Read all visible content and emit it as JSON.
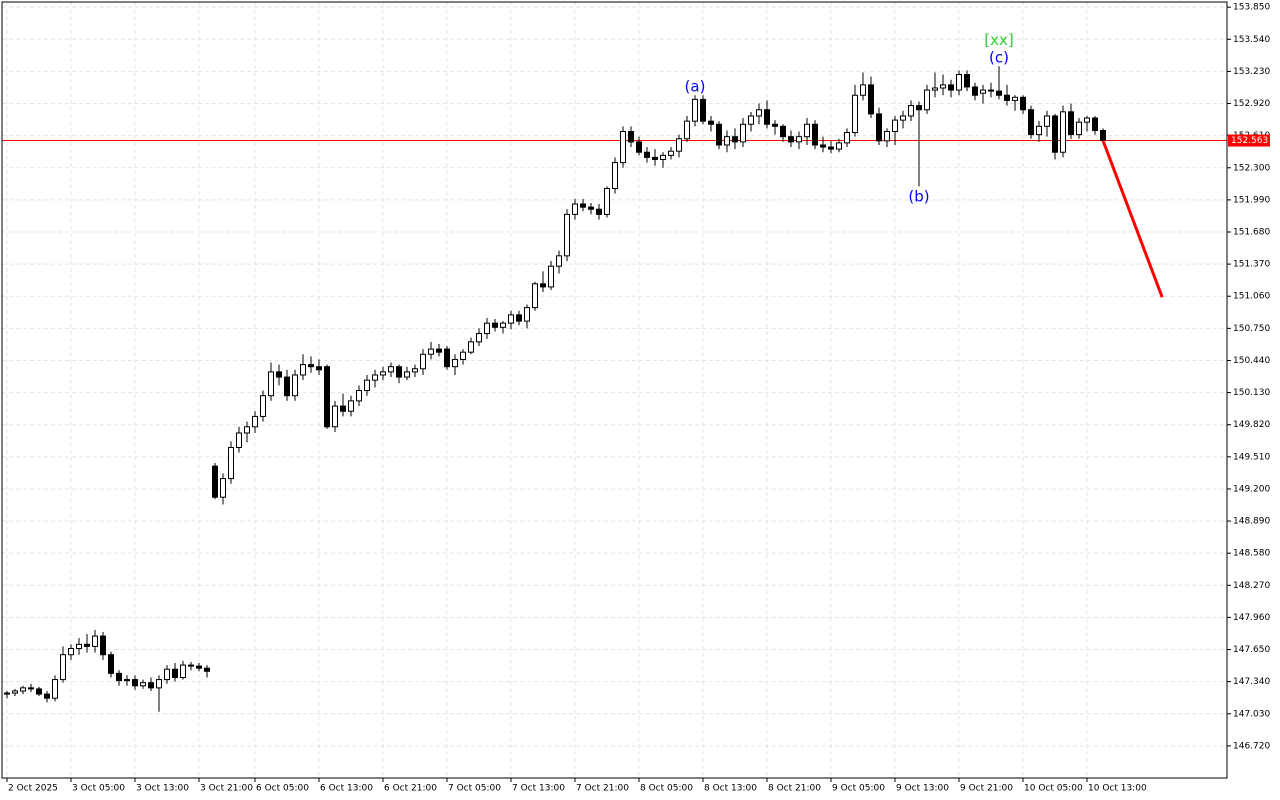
{
  "chart_data": {
    "type": "candlestick",
    "categories": [
      "2 Oct 2025",
      null,
      null,
      null,
      null,
      null,
      null,
      null,
      "3 Oct 05:00",
      null,
      null,
      null,
      null,
      null,
      null,
      null,
      "3 Oct 13:00",
      null,
      null,
      null,
      null,
      null,
      null,
      null,
      "3 Oct 21:00",
      null,
      null,
      null,
      null,
      null,
      null,
      "6 Oct 05:00",
      null,
      null,
      null,
      null,
      null,
      null,
      null,
      "6 Oct 13:00",
      null,
      null,
      null,
      null,
      null,
      null,
      null,
      "6 Oct 21:00",
      null,
      null,
      null,
      null,
      null,
      null,
      null,
      "7 Oct 05:00",
      null,
      null,
      null,
      null,
      null,
      null,
      null,
      "7 Oct 13:00",
      null,
      null,
      null,
      null,
      null,
      null,
      null,
      "7 Oct 21:00",
      null,
      null,
      null,
      null,
      null,
      null,
      null,
      "8 Oct 05:00",
      null,
      null,
      null,
      null,
      null,
      null,
      null,
      "8 Oct 13:00",
      null,
      null,
      null,
      null,
      null,
      null,
      null,
      "8 Oct 21:00",
      null,
      null,
      null,
      null,
      null,
      null,
      null,
      "9 Oct 05:00",
      null,
      null,
      null,
      null,
      null,
      null,
      null,
      "9 Oct 13:00",
      null,
      null,
      null,
      null,
      null,
      null,
      null,
      "9 Oct 21:00",
      null,
      null,
      null,
      null,
      null,
      null,
      null,
      "10 Oct 05:00",
      null,
      null,
      null,
      null,
      null,
      null,
      null,
      "10 Oct 13:00",
      null,
      null
    ],
    "open": [
      147.22,
      147.23,
      147.25,
      147.28,
      147.27,
      147.22,
      147.18,
      147.36,
      147.6,
      147.66,
      147.7,
      147.68,
      147.78,
      147.6,
      147.42,
      147.35,
      147.36,
      147.3,
      147.33,
      147.28,
      147.36,
      147.46,
      147.38,
      147.5,
      147.49,
      147.47,
      149.42,
      149.12,
      149.3,
      149.6,
      149.74,
      149.8,
      149.9,
      150.1,
      150.33,
      150.28,
      150.1,
      150.3,
      150.4,
      150.38,
      150.38,
      149.8,
      150.0,
      149.95,
      150.05,
      150.15,
      150.25,
      150.3,
      150.33,
      150.38,
      150.28,
      150.33,
      150.36,
      150.5,
      150.55,
      150.55,
      150.38,
      150.45,
      150.52,
      150.62,
      150.7,
      150.8,
      150.76,
      150.8,
      150.88,
      150.82,
      150.95,
      151.18,
      151.15,
      151.35,
      151.45,
      151.85,
      151.95,
      151.92,
      151.9,
      151.85,
      152.1,
      152.35,
      152.65,
      152.55,
      152.45,
      152.4,
      152.38,
      152.42,
      152.46,
      152.58,
      152.75,
      152.96,
      152.75,
      152.72,
      152.52,
      152.6,
      152.55,
      152.72,
      152.8,
      152.86,
      152.72,
      152.7,
      152.6,
      152.55,
      152.6,
      152.72,
      152.52,
      152.5,
      152.48,
      152.54,
      152.64,
      153.0,
      153.1,
      152.82,
      152.56,
      152.65,
      152.76,
      152.8,
      152.9,
      152.86,
      153.05,
      153.07,
      153.1,
      153.05,
      153.2,
      153.08,
      153.02,
      153.05,
      153.04,
      153.0,
      152.95,
      152.98,
      152.86,
      152.62,
      152.7,
      152.8,
      152.45,
      152.84,
      152.62,
      152.74,
      152.78,
      152.66
    ],
    "high": [
      147.25,
      147.27,
      147.3,
      147.32,
      147.29,
      147.25,
      147.4,
      147.68,
      147.7,
      147.76,
      147.8,
      147.84,
      147.82,
      147.63,
      147.45,
      147.4,
      147.4,
      147.36,
      147.38,
      147.4,
      147.5,
      147.52,
      147.54,
      147.53,
      147.52,
      147.5,
      149.45,
      149.35,
      149.66,
      149.8,
      149.85,
      149.95,
      150.15,
      150.42,
      150.4,
      150.35,
      150.35,
      150.5,
      150.48,
      150.45,
      150.4,
      150.05,
      150.12,
      150.1,
      150.2,
      150.3,
      150.35,
      150.38,
      150.42,
      150.4,
      150.38,
      150.4,
      150.55,
      150.62,
      150.6,
      150.58,
      150.5,
      150.55,
      150.66,
      150.75,
      150.85,
      150.84,
      150.82,
      150.92,
      150.92,
      150.98,
      151.2,
      151.3,
      151.4,
      151.5,
      151.9,
      152.0,
      152.0,
      151.96,
      151.95,
      152.12,
      152.4,
      152.7,
      152.7,
      152.6,
      152.5,
      152.48,
      152.45,
      152.5,
      152.62,
      152.8,
      153.0,
      153.0,
      152.8,
      152.75,
      152.66,
      152.68,
      152.78,
      152.84,
      152.92,
      152.95,
      152.76,
      152.72,
      152.66,
      152.65,
      152.78,
      152.76,
      152.6,
      152.56,
      152.58,
      152.68,
      153.1,
      153.22,
      153.18,
      152.88,
      152.68,
      152.8,
      152.85,
      152.95,
      152.94,
      153.1,
      153.22,
      153.2,
      153.15,
      153.24,
      153.24,
      153.12,
      153.1,
      153.12,
      153.28,
      153.1,
      153.0,
      153.0,
      152.9,
      152.75,
      152.85,
      152.82,
      152.9,
      152.92,
      152.78,
      152.8,
      152.8,
      152.68
    ],
    "low": [
      147.18,
      147.2,
      147.22,
      147.24,
      147.2,
      147.14,
      147.15,
      147.33,
      147.55,
      147.6,
      147.62,
      147.62,
      147.55,
      147.38,
      147.3,
      147.3,
      147.26,
      147.27,
      147.25,
      147.05,
      147.32,
      147.34,
      147.36,
      147.45,
      147.44,
      147.38,
      149.1,
      149.05,
      149.25,
      149.55,
      149.65,
      149.74,
      149.85,
      150.05,
      150.2,
      150.05,
      150.05,
      150.25,
      150.32,
      150.3,
      149.78,
      149.75,
      149.9,
      149.9,
      150.0,
      150.1,
      150.18,
      150.25,
      150.28,
      150.22,
      150.25,
      150.28,
      150.3,
      150.45,
      150.48,
      150.35,
      150.3,
      150.4,
      150.5,
      150.58,
      150.65,
      150.72,
      150.7,
      150.74,
      150.78,
      150.75,
      150.92,
      151.1,
      151.12,
      151.28,
      151.4,
      151.8,
      151.88,
      151.85,
      151.8,
      151.82,
      152.05,
      152.3,
      152.5,
      152.42,
      152.35,
      152.32,
      152.3,
      152.38,
      152.4,
      152.55,
      152.7,
      152.72,
      152.65,
      152.48,
      152.45,
      152.48,
      152.5,
      152.65,
      152.72,
      152.68,
      152.62,
      152.55,
      152.5,
      152.48,
      152.52,
      152.48,
      152.45,
      152.44,
      152.45,
      152.5,
      152.6,
      152.95,
      152.78,
      152.52,
      152.5,
      152.52,
      152.68,
      152.75,
      152.12,
      152.82,
      152.98,
      153.0,
      152.98,
      153.0,
      153.04,
      152.95,
      152.92,
      152.98,
      152.96,
      152.9,
      152.85,
      152.82,
      152.58,
      152.55,
      152.6,
      152.38,
      152.4,
      152.58,
      152.58,
      152.65,
      152.62,
      152.55
    ],
    "close": [
      147.23,
      147.25,
      147.28,
      147.27,
      147.22,
      147.18,
      147.36,
      147.6,
      147.66,
      147.7,
      147.68,
      147.78,
      147.6,
      147.42,
      147.35,
      147.36,
      147.3,
      147.33,
      147.28,
      147.36,
      147.46,
      147.38,
      147.5,
      147.49,
      147.47,
      147.44,
      149.12,
      149.3,
      149.6,
      149.74,
      149.8,
      149.9,
      150.1,
      150.33,
      150.28,
      150.1,
      150.3,
      150.4,
      150.38,
      150.35,
      149.8,
      150.0,
      149.95,
      150.05,
      150.15,
      150.25,
      150.3,
      150.33,
      150.38,
      150.28,
      150.33,
      150.36,
      150.5,
      150.55,
      150.52,
      150.38,
      150.45,
      150.52,
      150.62,
      150.7,
      150.8,
      150.76,
      150.8,
      150.88,
      150.82,
      150.95,
      151.18,
      151.15,
      151.35,
      151.45,
      151.85,
      151.95,
      151.92,
      151.9,
      151.85,
      152.1,
      152.35,
      152.65,
      152.55,
      152.45,
      152.4,
      152.38,
      152.42,
      152.46,
      152.58,
      152.75,
      152.96,
      152.75,
      152.72,
      152.52,
      152.6,
      152.55,
      152.72,
      152.8,
      152.86,
      152.72,
      152.7,
      152.6,
      152.55,
      152.6,
      152.72,
      152.52,
      152.5,
      152.48,
      152.54,
      152.64,
      153.0,
      153.1,
      152.82,
      152.56,
      152.65,
      152.76,
      152.8,
      152.9,
      152.86,
      153.05,
      153.07,
      153.1,
      153.05,
      153.2,
      153.08,
      153.0,
      153.05,
      153.04,
      153.0,
      152.95,
      152.98,
      152.86,
      152.62,
      152.7,
      152.8,
      152.45,
      152.84,
      152.62,
      152.74,
      152.78,
      152.66,
      152.563
    ],
    "up_color": "#ffffff",
    "down_color": "#000000",
    "wick_color": "#000000",
    "ylim": [
      146.41,
      153.9
    ],
    "yticks": [
      {
        "value": 146.72,
        "label": "146.720"
      },
      {
        "value": 147.03,
        "label": "147.030"
      },
      {
        "value": 147.34,
        "label": "147.340"
      },
      {
        "value": 147.65,
        "label": "147.650"
      },
      {
        "value": 147.96,
        "label": "147.960"
      },
      {
        "value": 148.27,
        "label": "148.270"
      },
      {
        "value": 148.58,
        "label": "148.580"
      },
      {
        "value": 148.89,
        "label": "148.890"
      },
      {
        "value": 149.2,
        "label": "149.200"
      },
      {
        "value": 149.51,
        "label": "149.510"
      },
      {
        "value": 149.82,
        "label": "149.820"
      },
      {
        "value": 150.13,
        "label": "150.130"
      },
      {
        "value": 150.44,
        "label": "150.440"
      },
      {
        "value": 150.75,
        "label": "150.750"
      },
      {
        "value": 151.06,
        "label": "151.060"
      },
      {
        "value": 151.37,
        "label": "151.370"
      },
      {
        "value": 151.68,
        "label": "151.680"
      },
      {
        "value": 151.99,
        "label": "151.990"
      },
      {
        "value": 152.3,
        "label": "152.300"
      },
      {
        "value": 152.61,
        "label": "152.610"
      },
      {
        "value": 152.92,
        "label": "152.920"
      },
      {
        "value": 153.23,
        "label": "153.230"
      },
      {
        "value": 153.54,
        "label": "153.540"
      },
      {
        "value": 153.85,
        "label": "153.850"
      }
    ],
    "grid": true,
    "grid_color": "#e4e4e4",
    "current_price": 152.563,
    "current_price_color": "#ff0000",
    "annotations": [
      {
        "text": "(a)",
        "x": 86,
        "y": 153.08,
        "color": "#0000ff"
      },
      {
        "text": "(b)",
        "x": 114,
        "y": 152.02,
        "color": "#0000ff"
      },
      {
        "text": "(c)",
        "x": 124,
        "y": 153.36,
        "color": "#0000ff"
      },
      {
        "text": "[xx]",
        "x": 124,
        "y": 153.53,
        "color": "#33cc33"
      }
    ],
    "forecast": {
      "x": [
        137,
        144.4
      ],
      "y": [
        152.563,
        151.05
      ],
      "color": "#ff0000"
    }
  }
}
